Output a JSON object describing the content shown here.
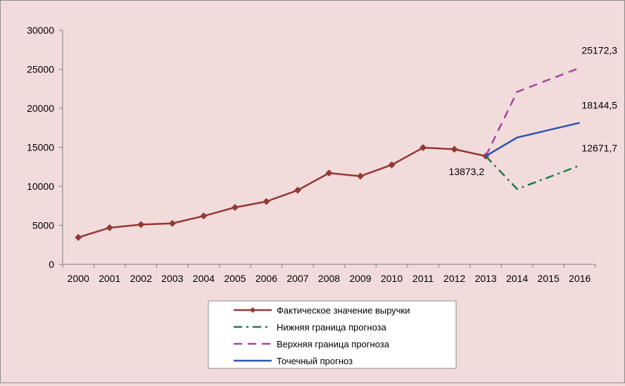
{
  "chart_data": {
    "type": "line",
    "title": "",
    "xlabel": "",
    "ylabel": "",
    "ylim": [
      0,
      30000
    ],
    "y_ticks": [
      "0",
      "5000",
      "10000",
      "15000",
      "20000",
      "25000",
      "30000"
    ],
    "categories": [
      "2000",
      "2001",
      "2002",
      "2003",
      "2004",
      "2005",
      "2006",
      "2007",
      "2008",
      "2009",
      "2010",
      "2011",
      "2012",
      "2013",
      "2014",
      "2015",
      "2016"
    ],
    "grid": false,
    "legend_position": "bottom",
    "series": [
      {
        "name": "Фактическое значение выручки",
        "color": "#953735",
        "style": "solid-diamond",
        "values": [
          3450,
          4700,
          5100,
          5250,
          6200,
          7300,
          8050,
          9500,
          11700,
          11300,
          12750,
          14950,
          14750,
          13873.2,
          null,
          null,
          null
        ]
      },
      {
        "name": "Нижняя граница прогноза",
        "color": "#1e7a45",
        "style": "dash-dot",
        "values": [
          null,
          null,
          null,
          null,
          null,
          null,
          null,
          null,
          null,
          null,
          null,
          null,
          null,
          13873.2,
          9650,
          11150,
          12671.7
        ]
      },
      {
        "name": "Верхняя граница прогноза",
        "color": "#a347a3",
        "style": "dash",
        "values": [
          null,
          null,
          null,
          null,
          null,
          null,
          null,
          null,
          null,
          null,
          null,
          null,
          null,
          13873.2,
          22100,
          23650,
          25172.3
        ]
      },
      {
        "name": "Точечный прогноз",
        "color": "#2f56b0",
        "style": "solid",
        "values": [
          null,
          null,
          null,
          null,
          null,
          null,
          null,
          null,
          null,
          null,
          null,
          null,
          null,
          13873.2,
          16250,
          17200,
          18144.5
        ]
      }
    ],
    "data_labels": [
      {
        "text": "13873,2",
        "category": "2013",
        "value": 13873.2
      },
      {
        "text": "25172,3",
        "category": "2016",
        "value": 25172.3
      },
      {
        "text": "18144,5",
        "category": "2016",
        "value": 18144.5
      },
      {
        "text": "12671,7",
        "category": "2016",
        "value": 12671.7
      }
    ]
  }
}
